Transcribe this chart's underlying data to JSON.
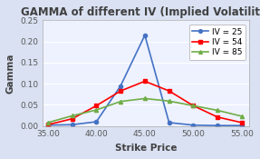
{
  "title": "GAMMA of different IV (Implied Volatility)",
  "xlabel": "Strike Price",
  "ylabel": "Gamma",
  "x_ticks": [
    35.0,
    37.5,
    40.0,
    42.5,
    45.0,
    47.5,
    50.0,
    52.5,
    55.0
  ],
  "x_tick_labels": [
    "35.00",
    "",
    "40.00",
    "",
    "45.00",
    "",
    "50.00",
    "",
    "55.00"
  ],
  "ylim": [
    0,
    0.25
  ],
  "xlim": [
    34.5,
    55.8
  ],
  "series": [
    {
      "label": "IV = 25",
      "color": "#4472C4",
      "marker": "o",
      "x": [
        35.0,
        37.5,
        40.0,
        42.5,
        45.0,
        47.5,
        50.0,
        52.5,
        55.0
      ],
      "y": [
        0.002,
        0.003,
        0.01,
        0.095,
        0.215,
        0.008,
        0.002,
        0.001,
        0.001
      ]
    },
    {
      "label": "IV = 54",
      "color": "#FF0000",
      "marker": "s",
      "x": [
        35.0,
        37.5,
        40.0,
        42.5,
        45.0,
        47.5,
        50.0,
        52.5,
        55.0
      ],
      "y": [
        0.003,
        0.017,
        0.048,
        0.083,
        0.106,
        0.083,
        0.048,
        0.021,
        0.008
      ]
    },
    {
      "label": "IV = 85",
      "color": "#70AD47",
      "marker": "^",
      "x": [
        35.0,
        37.5,
        40.0,
        42.5,
        45.0,
        47.5,
        50.0,
        52.5,
        55.0
      ],
      "y": [
        0.008,
        0.024,
        0.038,
        0.058,
        0.065,
        0.059,
        0.048,
        0.037,
        0.023
      ]
    }
  ],
  "outer_bg": "#D9E1F2",
  "plot_bg": "#EEF2FF",
  "grid_color": "#FFFFFF",
  "title_color": "#404040",
  "axis_label_color": "#404040",
  "tick_color": "#595959",
  "title_fontsize": 8.5,
  "label_fontsize": 7.5,
  "tick_fontsize": 6.5,
  "legend_fontsize": 6.5
}
